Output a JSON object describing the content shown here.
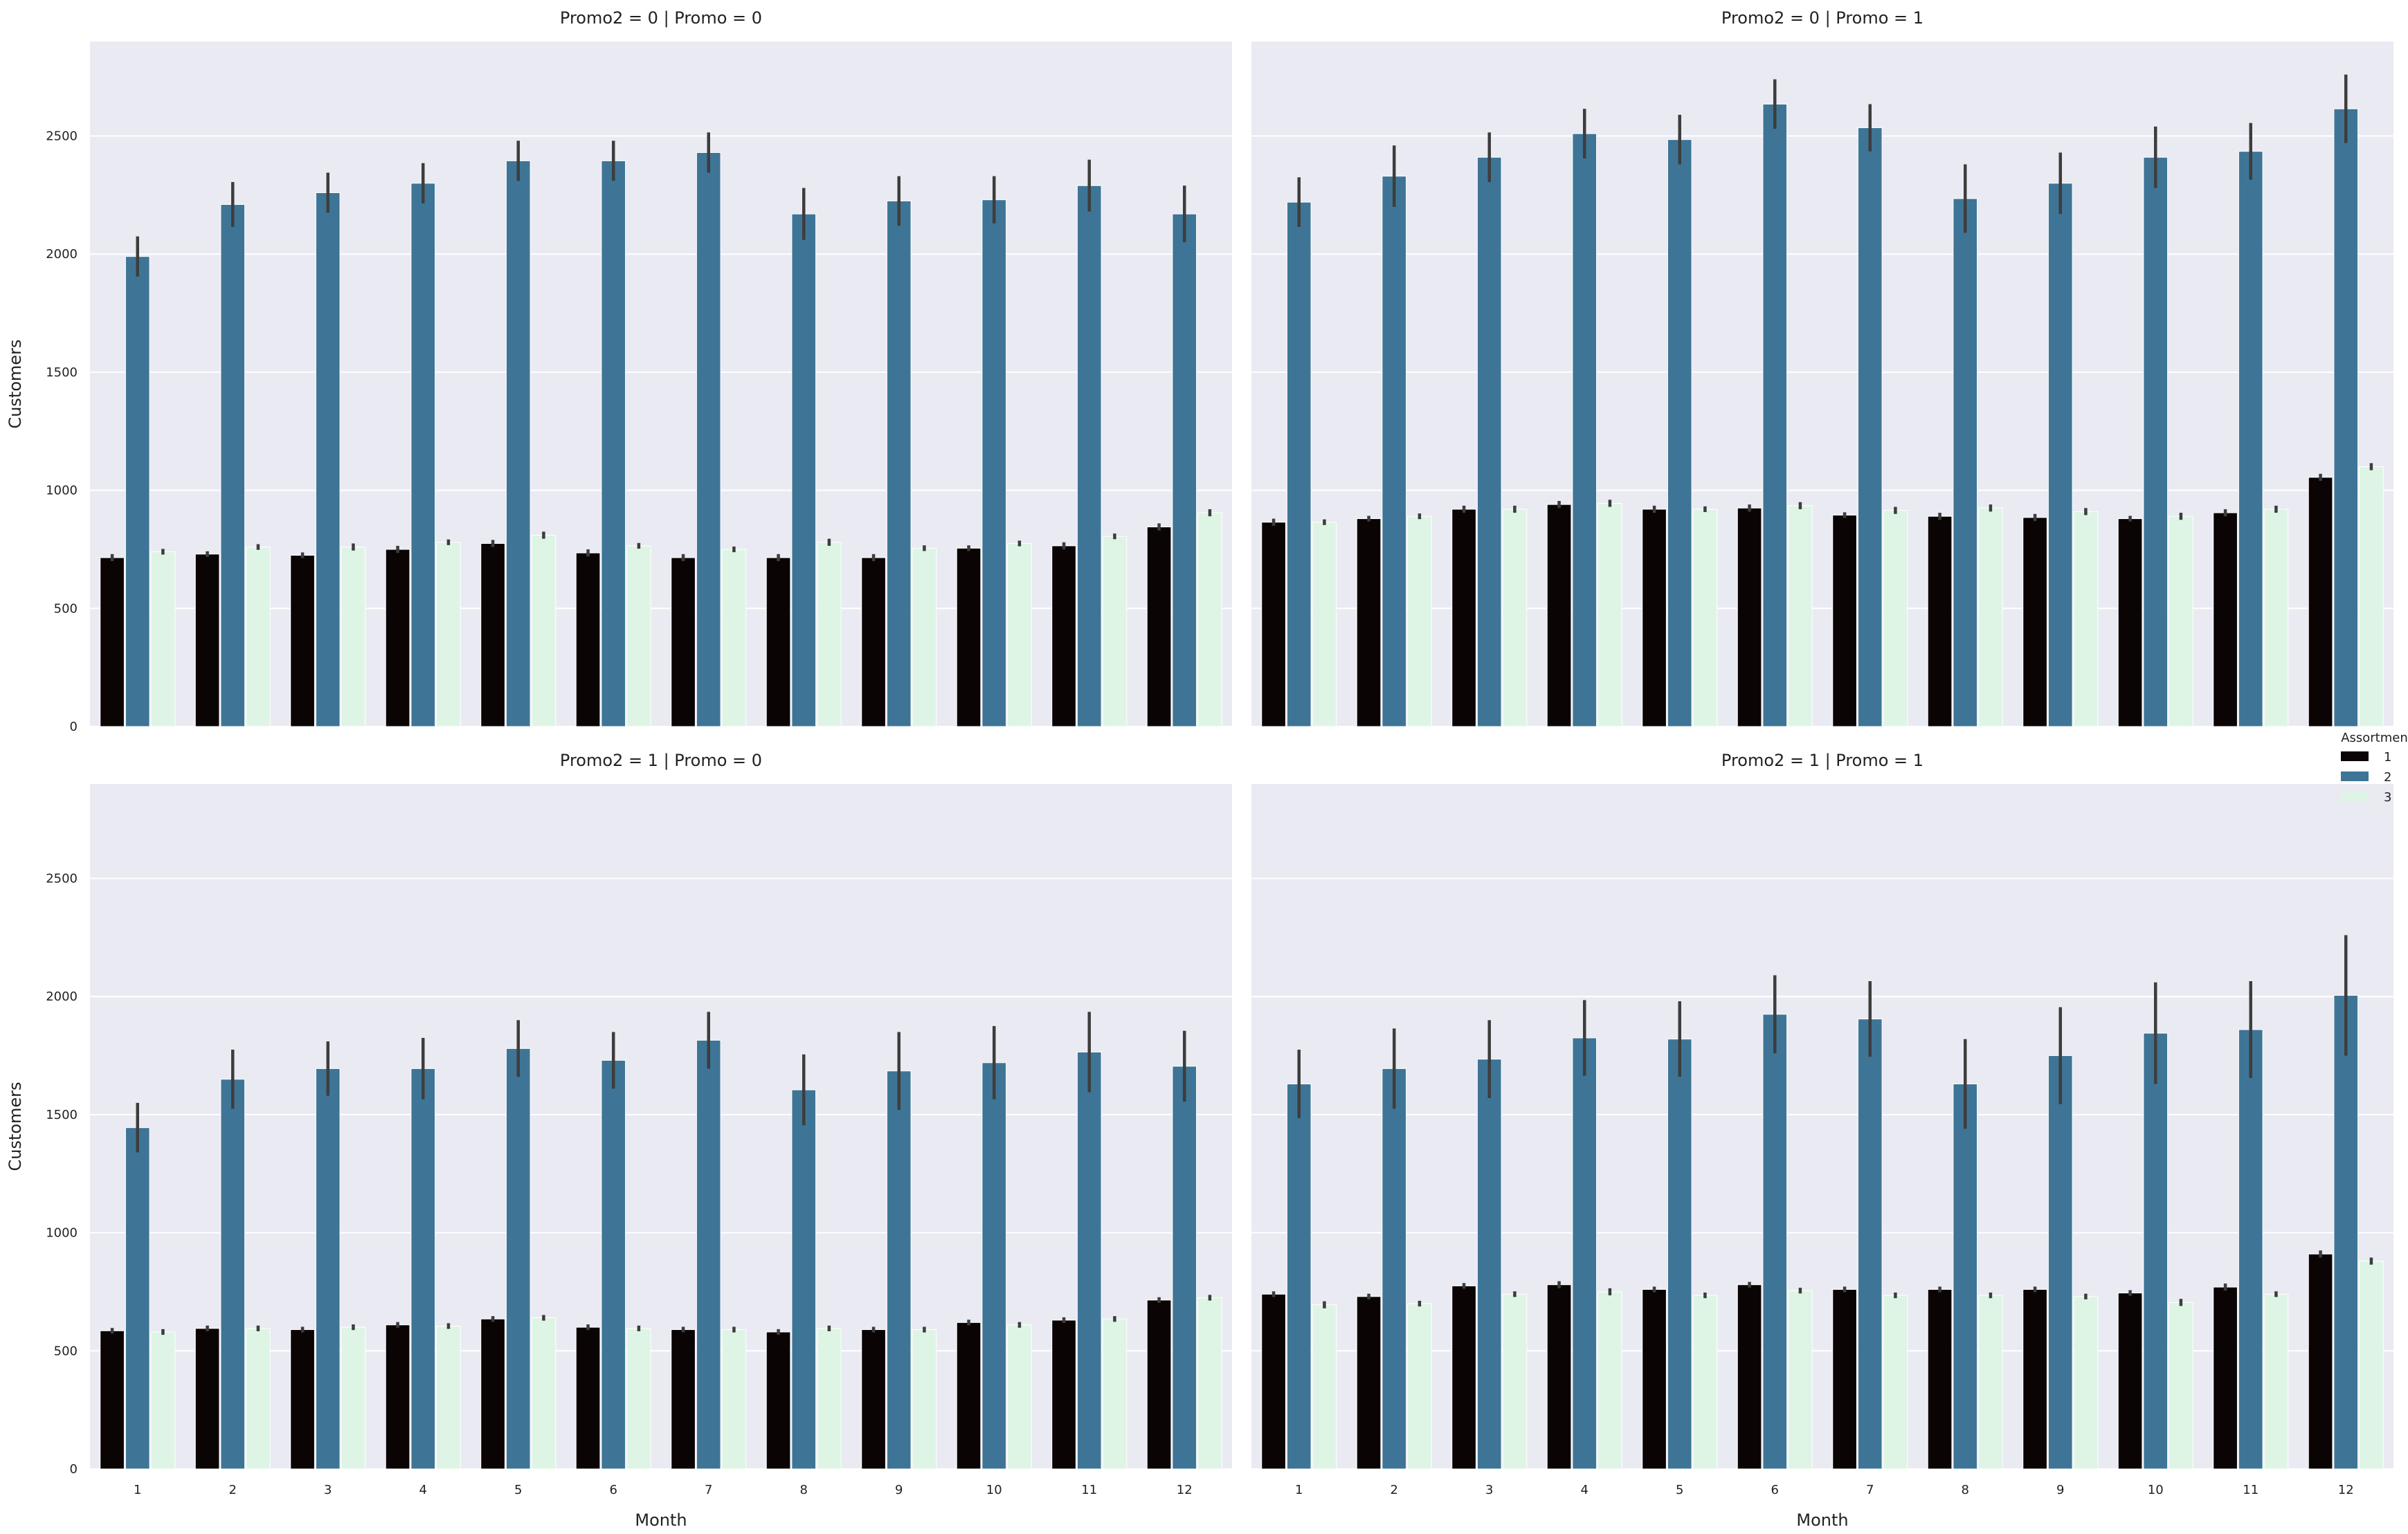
{
  "figure": {
    "ylabel": "Customers",
    "xlabel": "Month",
    "legend": {
      "title": "Assortment",
      "placement": "right, between rows",
      "entries": [
        {
          "label": "1",
          "color": "#0b0405"
        },
        {
          "label": "2",
          "color": "#3e7596"
        },
        {
          "label": "3",
          "color": "#def5e5"
        }
      ]
    },
    "colors": {
      "panel_bg": "#eaeaf2",
      "grid": "#ffffff",
      "errorbar": "#3d3d3d"
    }
  },
  "chart_data": [
    {
      "type": "bar",
      "title": "Promo2 = 0 | Promo = 0",
      "categories": [
        "1",
        "2",
        "3",
        "4",
        "5",
        "6",
        "7",
        "8",
        "9",
        "10",
        "11",
        "12"
      ],
      "ylim": [
        0,
        2900
      ],
      "yticks": [
        "0",
        "500",
        "1000",
        "1500",
        "2000",
        "2500"
      ],
      "ylabel": "Customers",
      "xlabel": "",
      "grid": true,
      "series": [
        {
          "name": "1",
          "values": [
            715,
            730,
            725,
            750,
            775,
            735,
            715,
            715,
            715,
            755,
            765,
            845
          ],
          "err": [
            15,
            12,
            12,
            15,
            15,
            15,
            15,
            15,
            15,
            12,
            15,
            15
          ]
        },
        {
          "name": "2",
          "values": [
            1990,
            2210,
            2260,
            2300,
            2395,
            2395,
            2430,
            2170,
            2225,
            2230,
            2290,
            2170
          ],
          "err": [
            85,
            95,
            85,
            85,
            85,
            85,
            85,
            110,
            105,
            100,
            110,
            120
          ]
        },
        {
          "name": "3",
          "values": [
            740,
            760,
            760,
            780,
            810,
            765,
            750,
            780,
            755,
            775,
            805,
            905
          ],
          "err": [
            12,
            12,
            15,
            12,
            15,
            12,
            12,
            15,
            12,
            12,
            12,
            15
          ]
        }
      ]
    },
    {
      "type": "bar",
      "title": "Promo2 = 0 | Promo = 1",
      "categories": [
        "1",
        "2",
        "3",
        "4",
        "5",
        "6",
        "7",
        "8",
        "9",
        "10",
        "11",
        "12"
      ],
      "ylim": [
        0,
        2900
      ],
      "yticks": [
        "0",
        "500",
        "1000",
        "1500",
        "2000",
        "2500"
      ],
      "ylabel": "",
      "xlabel": "",
      "grid": true,
      "series": [
        {
          "name": "1",
          "values": [
            865,
            880,
            920,
            940,
            920,
            925,
            895,
            890,
            885,
            880,
            905,
            1055
          ],
          "err": [
            15,
            12,
            15,
            15,
            15,
            15,
            12,
            15,
            15,
            12,
            15,
            15
          ]
        },
        {
          "name": "2",
          "values": [
            2220,
            2330,
            2410,
            2510,
            2485,
            2635,
            2535,
            2235,
            2300,
            2410,
            2435,
            2615
          ],
          "err": [
            105,
            130,
            105,
            105,
            105,
            105,
            100,
            145,
            130,
            130,
            120,
            145
          ]
        },
        {
          "name": "3",
          "values": [
            865,
            890,
            920,
            945,
            920,
            935,
            915,
            925,
            910,
            890,
            920,
            1100
          ],
          "err": [
            12,
            12,
            15,
            15,
            12,
            15,
            15,
            15,
            15,
            15,
            15,
            15
          ]
        }
      ]
    },
    {
      "type": "bar",
      "title": "Promo2 = 1 | Promo = 0",
      "categories": [
        "1",
        "2",
        "3",
        "4",
        "5",
        "6",
        "7",
        "8",
        "9",
        "10",
        "11",
        "12"
      ],
      "ylim": [
        0,
        2900
      ],
      "yticks": [
        "0",
        "500",
        "1000",
        "1500",
        "2000",
        "2500"
      ],
      "ylabel": "Customers",
      "xlabel": "Month",
      "grid": true,
      "series": [
        {
          "name": "1",
          "values": [
            585,
            595,
            590,
            610,
            635,
            600,
            590,
            580,
            590,
            620,
            630,
            715
          ],
          "err": [
            12,
            12,
            12,
            12,
            12,
            12,
            12,
            12,
            12,
            12,
            12,
            12
          ]
        },
        {
          "name": "2",
          "values": [
            1445,
            1650,
            1695,
            1695,
            1780,
            1730,
            1815,
            1605,
            1685,
            1720,
            1765,
            1705
          ],
          "err": [
            105,
            125,
            115,
            130,
            120,
            120,
            120,
            150,
            165,
            155,
            170,
            150
          ]
        },
        {
          "name": "3",
          "values": [
            580,
            595,
            600,
            605,
            640,
            595,
            590,
            595,
            590,
            610,
            635,
            725
          ],
          "err": [
            12,
            12,
            12,
            12,
            12,
            12,
            12,
            12,
            12,
            12,
            12,
            12
          ]
        }
      ]
    },
    {
      "type": "bar",
      "title": "Promo2 = 1 | Promo = 1",
      "categories": [
        "1",
        "2",
        "3",
        "4",
        "5",
        "6",
        "7",
        "8",
        "9",
        "10",
        "11",
        "12"
      ],
      "ylim": [
        0,
        2900
      ],
      "yticks": [
        "0",
        "500",
        "1000",
        "1500",
        "2000",
        "2500"
      ],
      "ylabel": "",
      "xlabel": "Month",
      "grid": true,
      "series": [
        {
          "name": "1",
          "values": [
            740,
            730,
            775,
            780,
            760,
            780,
            760,
            760,
            760,
            745,
            770,
            910
          ],
          "err": [
            12,
            12,
            12,
            15,
            12,
            12,
            12,
            12,
            12,
            12,
            15,
            15
          ]
        },
        {
          "name": "2",
          "values": [
            1630,
            1695,
            1735,
            1825,
            1820,
            1925,
            1905,
            1630,
            1750,
            1845,
            1860,
            2005
          ],
          "err": [
            145,
            170,
            165,
            160,
            160,
            165,
            160,
            190,
            205,
            215,
            205,
            255
          ]
        },
        {
          "name": "3",
          "values": [
            695,
            700,
            740,
            750,
            735,
            755,
            735,
            735,
            730,
            705,
            740,
            880
          ],
          "err": [
            15,
            12,
            12,
            15,
            12,
            12,
            12,
            12,
            12,
            15,
            12,
            15
          ]
        }
      ]
    }
  ]
}
